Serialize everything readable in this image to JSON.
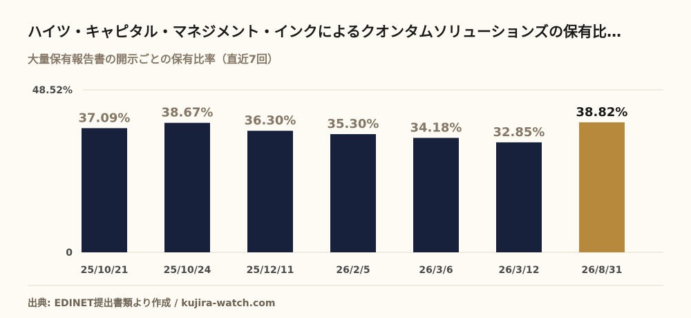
{
  "header": {
    "title": "ハイツ・キャピタル・マネジメント・インクによるクオンタムソリューションズの保有比…",
    "subtitle": "大量保有報告書の開示ごとの保有比率（直近7回）"
  },
  "footer": {
    "source": "出典: EDINET提出書類より作成 / kujira-watch.com"
  },
  "colors": {
    "bar": "#17213b",
    "highlight": "#b7893d",
    "label": "#857766",
    "highlight_label": "#1a1a1a",
    "grid": "#e2dccb",
    "axis_text": "#4a4a4a"
  },
  "chart_data": {
    "type": "bar",
    "title": "ハイツ・キャピタル・マネジメント・インクによるクオンタムソリューションズの保有比…",
    "subtitle": "大量保有報告書の開示ごとの保有比率（直近7回）",
    "categories": [
      "25/10/21",
      "25/10/24",
      "25/12/11",
      "26/2/5",
      "26/3/6",
      "26/3/12",
      "26/8/31"
    ],
    "values": [
      37.09,
      38.67,
      36.3,
      35.3,
      34.18,
      32.85,
      38.82
    ],
    "value_labels": [
      "37.09%",
      "38.67%",
      "36.30%",
      "35.30%",
      "34.18%",
      "32.85%",
      "38.82%"
    ],
    "highlight_index": 6,
    "ylim": [
      0,
      48.52
    ],
    "y_ticks": [
      0,
      48.52
    ],
    "y_tick_labels": [
      "0",
      "48.52%"
    ],
    "xlabel": "",
    "ylabel": "",
    "grid": true,
    "legend": "none"
  }
}
